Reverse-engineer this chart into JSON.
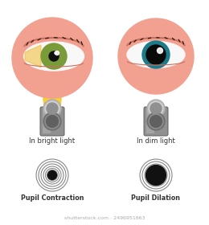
{
  "bg_color": "#ffffff",
  "skin_color": "#F2A090",
  "eye_white": "#f8f8f8",
  "left_iris_color": "#7A9B3A",
  "right_iris_color": "#1E7B8A",
  "light_beam_color": "#F5C518",
  "torch_body_color_light": "#A0A0A0",
  "torch_body_color_dark": "#707070",
  "torch_top_color": "#C0C0C0",
  "torch_lens_color": "#808080",
  "label_bright": "In bright light",
  "label_dim": "In dim light",
  "label_contraction": "Pupil Contraction",
  "label_dilation": "Pupil Dilation",
  "watermark": "shutterstock.com · 2496951863",
  "contraction_rings": [
    20,
    17,
    14,
    11,
    8.5,
    6.5
  ],
  "dilation_rings": [
    20,
    17,
    14
  ],
  "contraction_pupil": 5.5,
  "dilation_pupil": 12.5
}
